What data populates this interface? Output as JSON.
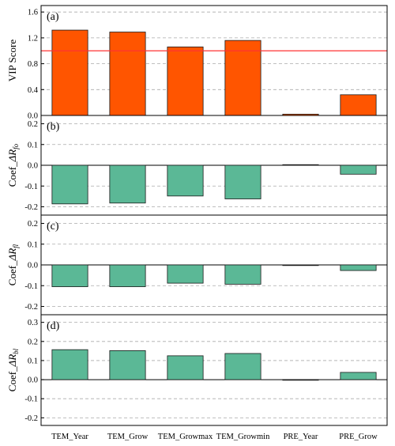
{
  "chart_data": {
    "type": "bar",
    "categories": [
      "TEM_Year",
      "TEM_Grow",
      "TEM_Growmax",
      "TEM_Growmin",
      "PRE_Year",
      "PRE_Grow"
    ],
    "grid": true,
    "colors": {
      "vip_bar": "#ff5500",
      "coef_bar": "#5bb896",
      "threshold_line": "#ff3333",
      "grid": "#aaaaaa"
    },
    "panels": [
      {
        "label": "(a)",
        "ylabel": "VIP Score",
        "ylim": [
          0,
          1.7
        ],
        "yticks": [
          0.0,
          0.4,
          0.8,
          1.2,
          1.6
        ],
        "tick_labels": [
          "0.0",
          "0.4",
          "0.8",
          "1.2",
          "1.6"
        ],
        "threshold": 1.0,
        "series": [
          {
            "values": [
              1.32,
              1.29,
              1.06,
              1.16,
              0.02,
              0.32
            ]
          }
        ]
      },
      {
        "label": "(b)",
        "ylabel": {
          "prefix": "Coef_",
          "delta": "ΔR",
          "sub": "fo"
        },
        "ylim": [
          -0.24,
          0.24
        ],
        "yticks": [
          -0.2,
          -0.1,
          0.0,
          0.1,
          0.2
        ],
        "tick_labels": [
          "-0.2",
          "-0.1",
          "0.0",
          "0.1",
          "0.2"
        ],
        "series": [
          {
            "values": [
              -0.186,
              -0.182,
              -0.148,
              -0.162,
              0.003,
              -0.043
            ]
          }
        ]
      },
      {
        "label": "(c)",
        "ylabel": {
          "prefix": "Coef_",
          "delta": "ΔR",
          "sub": "fl"
        },
        "ylim": [
          -0.24,
          0.24
        ],
        "yticks": [
          -0.2,
          -0.1,
          0.0,
          0.1,
          0.2
        ],
        "tick_labels": [
          "-0.2",
          "-0.1",
          "0.0",
          "0.1",
          "0.2"
        ],
        "series": [
          {
            "values": [
              -0.105,
              -0.105,
              -0.088,
              -0.093,
              -0.002,
              -0.027
            ]
          }
        ]
      },
      {
        "label": "(d)",
        "ylabel": {
          "prefix": "Coef_",
          "delta": "ΔR",
          "sub": "bl"
        },
        "ylim": [
          -0.24,
          0.34
        ],
        "yticks": [
          -0.2,
          -0.1,
          0.0,
          0.1,
          0.2,
          0.3
        ],
        "tick_labels": [
          "-0.2",
          "-0.1",
          "0.0",
          "0.1",
          "0.2",
          "0.3"
        ],
        "series": [
          {
            "values": [
              0.157,
              0.152,
              0.125,
              0.137,
              -0.002,
              0.038
            ]
          }
        ]
      }
    ]
  }
}
